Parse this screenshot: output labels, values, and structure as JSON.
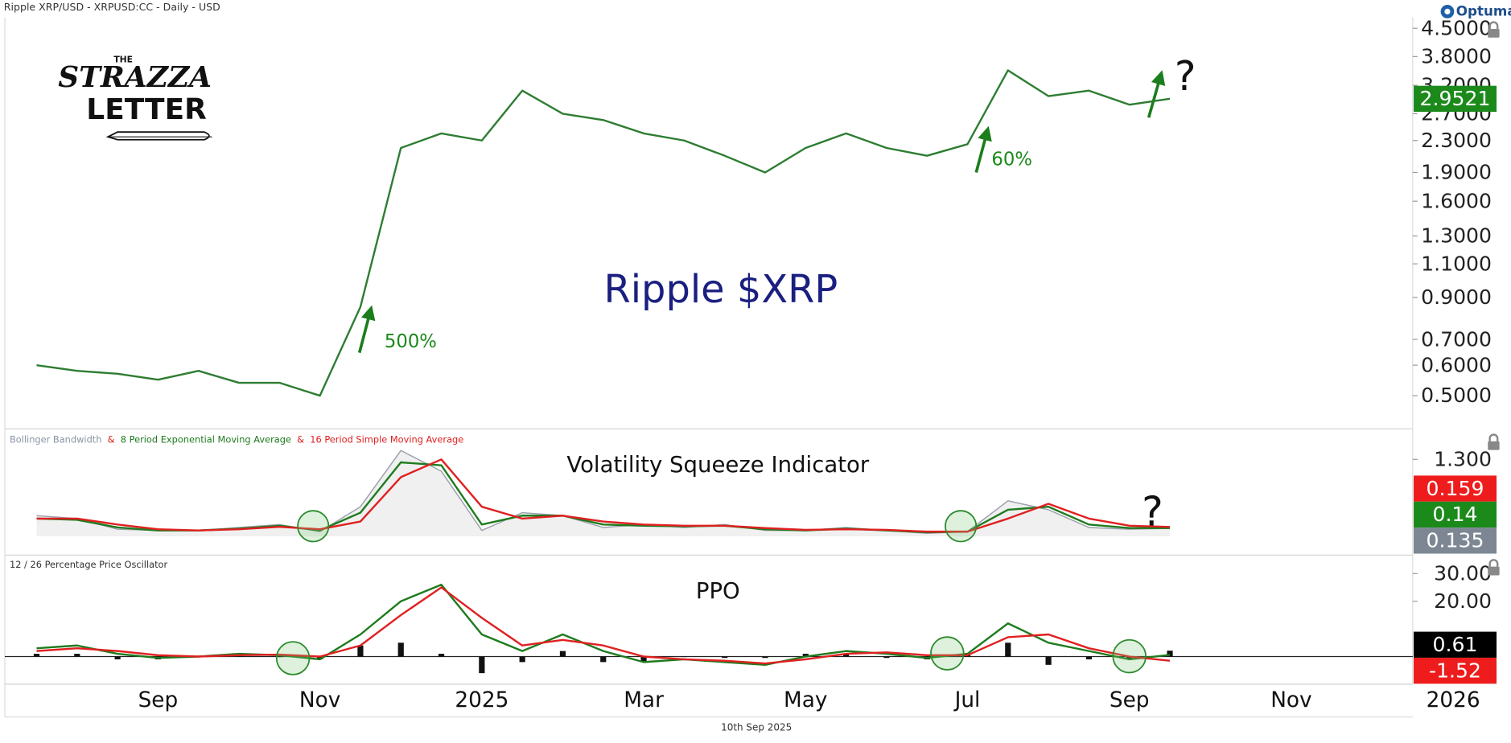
{
  "header": "Ripple XRP/USD - XRPUSD:CC - Daily - USD",
  "brand": "Optuma",
  "footer": "10th Sep 2025",
  "logo": [
    "THE",
    "STRAZZA",
    "LETTER"
  ],
  "chart_data": [
    {
      "type": "line",
      "title": "Ripple $XRP",
      "annotations": [
        "500%",
        "60%",
        "?"
      ],
      "log_scale": true,
      "categories": [
        null,
        null,
        null,
        "Sep",
        null,
        null,
        null,
        "Nov",
        null,
        null,
        null,
        "2025",
        null,
        null,
        null,
        "Mar",
        null,
        null,
        null,
        "May",
        null,
        null,
        null,
        "Jul",
        null,
        null,
        null,
        "Sep",
        null,
        null,
        null,
        "Nov",
        null,
        null,
        null,
        "2026",
        null
      ],
      "ylim": [
        0.41,
        4.75
      ],
      "yticks": [
        {
          "value": 4.5,
          "label": "4.5000"
        },
        {
          "value": 3.8,
          "label": "3.8000"
        },
        {
          "value": 3.2,
          "label": "3.2000"
        },
        {
          "value": 2.7,
          "label": "2.7000"
        },
        {
          "value": 2.3,
          "label": "2.3000"
        },
        {
          "value": 1.9,
          "label": "1.9000"
        },
        {
          "value": 1.6,
          "label": "1.6000"
        },
        {
          "value": 1.3,
          "label": "1.3000"
        },
        {
          "value": 1.1,
          "label": "1.1000"
        },
        {
          "value": 0.9,
          "label": "0.9000"
        },
        {
          "value": 0.7,
          "label": "0.7000"
        },
        {
          "value": 0.6,
          "label": "0.6000"
        },
        {
          "value": 0.5,
          "label": "0.5000"
        }
      ],
      "series": [
        {
          "color": "#2e7d32",
          "label_color": "#1b8a1b",
          "values": [
            0.6,
            0.58,
            0.57,
            0.55,
            0.58,
            0.54,
            0.54,
            0.5,
            0.85,
            2.2,
            2.4,
            2.3,
            3.1,
            2.7,
            2.6,
            2.4,
            2.3,
            2.1,
            1.9,
            2.2,
            2.4,
            2.2,
            2.1,
            2.25,
            3.5,
            3.0,
            3.1,
            2.85,
            2.9521,
            null,
            null,
            null,
            null,
            null,
            null,
            null,
            null
          ]
        }
      ]
    },
    {
      "type": "line",
      "title": "Volatility Squeeze Indicator",
      "legend_separator": "&",
      "annotations": [
        "?"
      ],
      "ylim": [
        -0.3,
        1.8
      ],
      "yticks": [
        {
          "value": 1.3,
          "label": "1.300"
        }
      ],
      "series": [
        {
          "name": "Bollinger Bandwidth",
          "color": "#9aa0aa",
          "fill_color": "#f0f0f0",
          "label_color": "#7d8794",
          "values": [
            0.35,
            0.3,
            0.12,
            0.1,
            0.1,
            0.15,
            0.2,
            0.08,
            0.5,
            1.45,
            1.1,
            0.1,
            0.4,
            0.35,
            0.15,
            0.2,
            0.15,
            0.2,
            0.1,
            0.1,
            0.15,
            0.1,
            0.05,
            0.08,
            0.6,
            0.45,
            0.15,
            0.12,
            0.135,
            null,
            null,
            null,
            null,
            null,
            null,
            null,
            null
          ]
        },
        {
          "name": "8 Period Exponential Moving Average",
          "color": "#1e7b1e",
          "label_color": "#1b8a1b",
          "values": [
            0.3,
            0.28,
            0.15,
            0.1,
            0.1,
            0.13,
            0.18,
            0.1,
            0.4,
            1.25,
            1.2,
            0.2,
            0.35,
            0.35,
            0.2,
            0.18,
            0.17,
            0.18,
            0.12,
            0.1,
            0.13,
            0.1,
            0.07,
            0.08,
            0.45,
            0.5,
            0.2,
            0.14,
            0.14,
            null,
            null,
            null,
            null,
            null,
            null,
            null,
            null
          ]
        },
        {
          "name": "16 Period Simple Moving Average",
          "color": "#e02020",
          "label_color": "#ee1c1c",
          "values": [
            0.3,
            0.3,
            0.2,
            0.12,
            0.1,
            0.12,
            0.16,
            0.12,
            0.25,
            1.0,
            1.3,
            0.5,
            0.3,
            0.35,
            0.25,
            0.2,
            0.18,
            0.18,
            0.14,
            0.11,
            0.12,
            0.11,
            0.08,
            0.08,
            0.3,
            0.55,
            0.3,
            0.18,
            0.159,
            null,
            null,
            null,
            null,
            null,
            null,
            null,
            null
          ]
        }
      ]
    },
    {
      "type": "line",
      "title": "PPO",
      "subtitle": "12 / 26 Percentage Price Oscillator",
      "ylim": [
        -10,
        36
      ],
      "yticks": [
        {
          "value": 30,
          "label": "30.00"
        },
        {
          "value": 20,
          "label": "20.00"
        }
      ],
      "series": [
        {
          "type": "bar",
          "color": "#111111",
          "values": [
            1,
            1,
            -1,
            -1,
            0,
            0.5,
            -0.2,
            -1,
            4,
            5,
            1,
            -6,
            -2,
            2,
            -2,
            -2,
            0,
            -0.5,
            -0.5,
            1,
            1,
            -0.5,
            -1,
            0.5,
            5,
            -3,
            -1,
            -1,
            2.13,
            null,
            null,
            null,
            null,
            null,
            null,
            null,
            null
          ]
        },
        {
          "color": "#1e7b1e",
          "label_color": "#000000",
          "values": [
            3,
            4,
            1,
            -0.5,
            0,
            1,
            0.5,
            -1,
            8,
            20,
            26,
            8,
            2,
            8,
            2,
            -2,
            -1,
            -2,
            -3,
            0,
            2,
            1,
            -0.5,
            1,
            12,
            5,
            2,
            -1,
            0.61,
            null,
            null,
            null,
            null,
            null,
            null,
            null,
            null
          ]
        },
        {
          "color": "#e02020",
          "label_color": "#ee1c1c",
          "values": [
            2,
            3,
            2,
            0.5,
            0,
            0.5,
            0.7,
            0,
            4,
            15,
            25,
            14,
            4,
            6,
            4,
            0,
            -1,
            -1.5,
            -2.5,
            -1,
            1,
            1.5,
            0.5,
            0.5,
            7,
            8,
            3,
            0,
            -1.52,
            null,
            null,
            null,
            null,
            null,
            null,
            null,
            null
          ]
        }
      ]
    }
  ]
}
